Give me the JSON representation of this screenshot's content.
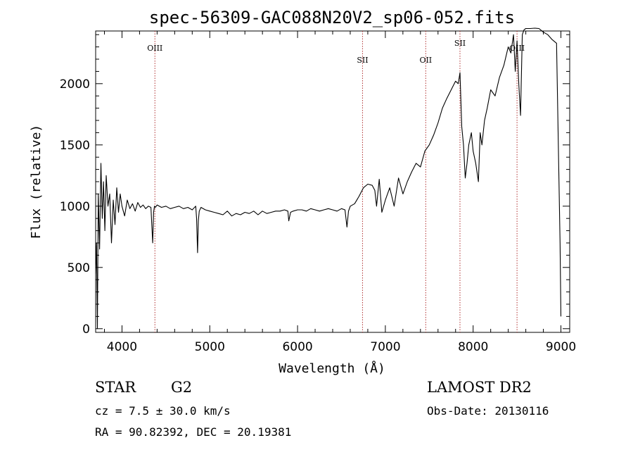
{
  "chart_data": {
    "type": "line",
    "title": "spec-56309-GAC088N20V2_sp06-052.fits",
    "xlabel": "Wavelength (Å)",
    "ylabel": "Flux (relative)",
    "xlim": [
      3700,
      9100
    ],
    "ylim": [
      -30,
      2430
    ],
    "xticks": [
      {
        "value": 4000,
        "label": "4000"
      },
      {
        "value": 5000,
        "label": "5000"
      },
      {
        "value": 6000,
        "label": "6000"
      },
      {
        "value": 7000,
        "label": "7000"
      },
      {
        "value": 8000,
        "label": "8000"
      },
      {
        "value": 9000,
        "label": "9000"
      }
    ],
    "yticks": [
      {
        "value": 0,
        "label": "0"
      },
      {
        "value": 500,
        "label": "500"
      },
      {
        "value": 1000,
        "label": "1000"
      },
      {
        "value": 1500,
        "label": "1500"
      },
      {
        "value": 2000,
        "label": "2000"
      }
    ],
    "lines": [
      {
        "x": 4375,
        "label": "OIII",
        "label_y": 2270
      },
      {
        "x": 6740,
        "label": "SII",
        "label_y": 2170
      },
      {
        "x": 7460,
        "label": "OII",
        "label_y": 2170
      },
      {
        "x": 7850,
        "label": "SII",
        "label_y": 2310
      },
      {
        "x": 8500,
        "label": "OIII",
        "label_y": 2270
      }
    ],
    "series": [
      {
        "x": [
          3700,
          3710,
          3720,
          3730,
          3745,
          3760,
          3775,
          3790,
          3805,
          3820,
          3840,
          3860,
          3880,
          3900,
          3920,
          3940,
          3960,
          3980,
          4000,
          4030,
          4060,
          4090,
          4120,
          4150,
          4180,
          4210,
          4240,
          4270,
          4300,
          4330,
          4350,
          4360,
          4370,
          4380,
          4400,
          4450,
          4500,
          4550,
          4600,
          4650,
          4700,
          4750,
          4800,
          4840,
          4850,
          4861,
          4870,
          4880,
          4900,
          4950,
          5000,
          5050,
          5100,
          5150,
          5200,
          5250,
          5300,
          5350,
          5400,
          5450,
          5500,
          5550,
          5600,
          5650,
          5700,
          5750,
          5800,
          5850,
          5890,
          5900,
          5920,
          5950,
          6000,
          6050,
          6100,
          6150,
          6200,
          6250,
          6300,
          6350,
          6400,
          6450,
          6500,
          6540,
          6563,
          6580,
          6600,
          6650,
          6700,
          6750,
          6800,
          6850,
          6880,
          6900,
          6930,
          6960,
          7000,
          7050,
          7100,
          7150,
          7200,
          7250,
          7300,
          7350,
          7400,
          7450,
          7500,
          7550,
          7600,
          7650,
          7700,
          7750,
          7800,
          7830,
          7850,
          7870,
          7890,
          7910,
          7930,
          7950,
          7980,
          8000,
          8030,
          8060,
          8080,
          8100,
          8130,
          8160,
          8200,
          8250,
          8300,
          8350,
          8400,
          8430,
          8460,
          8480,
          8500,
          8520,
          8540,
          8560,
          8580,
          8600,
          8650,
          8700,
          8750,
          8800,
          8850,
          8900,
          8950,
          8990,
          9000
        ],
        "y": [
          450,
          700,
          0,
          1100,
          650,
          1350,
          900,
          1200,
          800,
          1250,
          1000,
          1100,
          700,
          1050,
          850,
          1150,
          950,
          1100,
          1000,
          920,
          1050,
          980,
          1020,
          960,
          1030,
          990,
          1010,
          980,
          1000,
          990,
          700,
          950,
          1000,
          990,
          1010,
          990,
          1000,
          980,
          990,
          1000,
          980,
          990,
          970,
          1000,
          900,
          620,
          880,
          960,
          990,
          970,
          960,
          950,
          940,
          930,
          960,
          920,
          940,
          930,
          950,
          940,
          960,
          930,
          960,
          940,
          950,
          960,
          960,
          970,
          960,
          880,
          950,
          960,
          970,
          970,
          960,
          980,
          970,
          960,
          970,
          980,
          970,
          960,
          980,
          970,
          830,
          960,
          1000,
          1020,
          1080,
          1150,
          1180,
          1170,
          1130,
          1000,
          1220,
          950,
          1050,
          1150,
          1000,
          1230,
          1100,
          1200,
          1280,
          1350,
          1320,
          1450,
          1500,
          1580,
          1680,
          1800,
          1880,
          1950,
          2020,
          2000,
          2090,
          1650,
          1500,
          1230,
          1350,
          1500,
          1600,
          1450,
          1350,
          1200,
          1600,
          1500,
          1700,
          1800,
          1950,
          1900,
          2050,
          2150,
          2300,
          2250,
          2400,
          2100,
          2350,
          2000,
          1740,
          2400,
          2440,
          2450,
          2450,
          2470,
          2450,
          2420,
          2400,
          2360,
          2330,
          700,
          100
        ]
      }
    ]
  },
  "info": {
    "object_type": "STAR",
    "subclass": "G2",
    "redshift": "cz =   7.5 ± 30.0 km/s",
    "coords": "RA =  90.82392, DEC =  20.19381",
    "survey": "LAMOST DR2",
    "obs_date": "Obs-Date: 20130116"
  },
  "colors": {
    "axis": "#000000",
    "spectrum": "#000000",
    "line_marker": "#b03030"
  }
}
